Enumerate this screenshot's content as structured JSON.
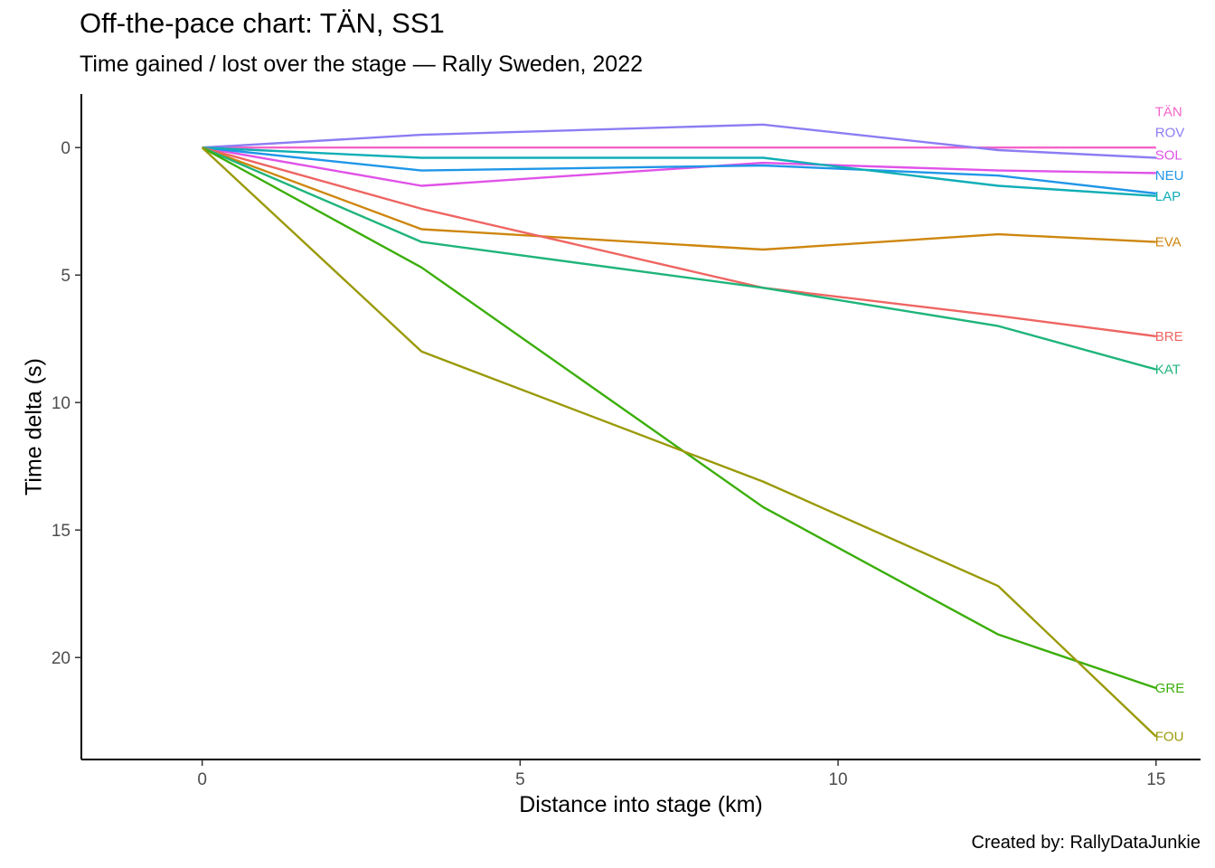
{
  "chart_data": {
    "type": "line",
    "title": "Off-the-pace chart: TÄN, SS1",
    "subtitle": "Time gained / lost over the stage — Rally Sweden, 2022",
    "caption": "Created by: RallyDataJunkie",
    "xlabel": "Distance into stage (km)",
    "ylabel": "Time delta (s)",
    "xlim": [
      -1.9,
      15.7
    ],
    "ylim": [
      -2.1,
      24.0
    ],
    "y_reversed": true,
    "x_ticks": [
      0,
      5,
      10,
      15
    ],
    "y_ticks": [
      0,
      5,
      10,
      15,
      20
    ],
    "grid": false,
    "legend": "none",
    "x": [
      0,
      3.45,
      8.82,
      12.52,
      15.0
    ],
    "series": [
      {
        "name": "TÄN",
        "color": "#F464C8",
        "values": [
          0,
          0,
          0,
          0,
          0
        ]
      },
      {
        "name": "ROV",
        "color": "#8C7DF3",
        "values": [
          0,
          -0.5,
          -0.9,
          0.1,
          0.4
        ]
      },
      {
        "name": "SOL",
        "color": "#E052E8",
        "values": [
          0,
          1.5,
          0.6,
          0.9,
          1.0
        ]
      },
      {
        "name": "NEU",
        "color": "#1F96E8",
        "values": [
          0,
          0.9,
          0.7,
          1.1,
          1.8
        ]
      },
      {
        "name": "LAP",
        "color": "#10AEB6",
        "values": [
          0,
          0.4,
          0.4,
          1.5,
          1.9
        ]
      },
      {
        "name": "EVA",
        "color": "#CE860E",
        "values": [
          0,
          3.2,
          4.0,
          3.4,
          3.7
        ]
      },
      {
        "name": "BRE",
        "color": "#EE6562",
        "values": [
          0,
          2.4,
          5.5,
          6.6,
          7.4
        ]
      },
      {
        "name": "KAT",
        "color": "#1FB47B",
        "values": [
          0,
          3.7,
          5.5,
          7.0,
          8.7
        ]
      },
      {
        "name": "GRE",
        "color": "#3BAE0A",
        "values": [
          0,
          4.7,
          14.1,
          19.1,
          21.2
        ]
      },
      {
        "name": "FOU",
        "color": "#9A9A0A",
        "values": [
          0,
          8.0,
          13.1,
          17.2,
          23.1
        ]
      }
    ],
    "end_labels": [
      {
        "name": "TÄN",
        "y": -1.4
      },
      {
        "name": "ROV",
        "y": -0.6
      },
      {
        "name": "SOL",
        "y": 0.3
      },
      {
        "name": "NEU",
        "y": 1.1
      },
      {
        "name": "LAP",
        "y": 1.9
      },
      {
        "name": "EVA",
        "y": 3.7
      },
      {
        "name": "BRE",
        "y": 7.4
      },
      {
        "name": "KAT",
        "y": 8.7
      },
      {
        "name": "GRE",
        "y": 21.2
      },
      {
        "name": "FOU",
        "y": 23.1
      }
    ]
  }
}
